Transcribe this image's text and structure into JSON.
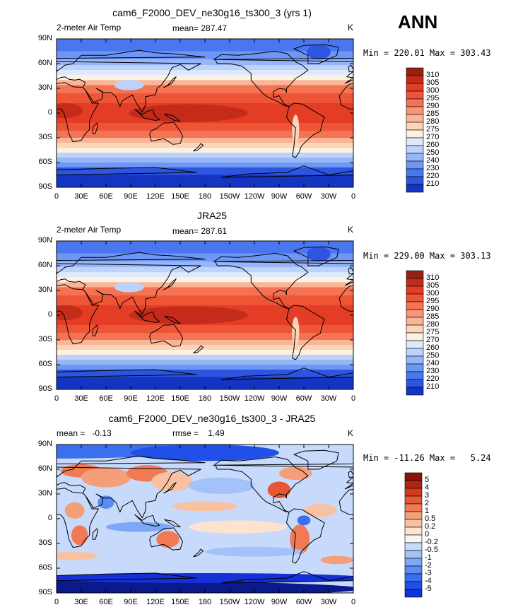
{
  "season": "ANN",
  "colors": {
    "abs_palette": [
      "#0a1a78",
      "#1434c2",
      "#2d55e0",
      "#4a76f0",
      "#6e96f5",
      "#97b6f7",
      "#bdd3fa",
      "#dde9fc",
      "#fdf1e2",
      "#fcd4b8",
      "#fab597",
      "#f79574",
      "#f47352",
      "#ee5537",
      "#e33d25",
      "#c42b19",
      "#962012"
    ],
    "diff_palette": [
      "#0a1a8a",
      "#1530d6",
      "#2150e8",
      "#3a6ff0",
      "#5a8cf2",
      "#7ea8f5",
      "#a3c2f8",
      "#c7dafb",
      "#f5f5f5",
      "#fbe3cf",
      "#f8c2a2",
      "#f59e7a",
      "#f17a55",
      "#e85735",
      "#d33a1f",
      "#b02414",
      "#8a130b"
    ],
    "land": "#000000"
  },
  "chart_data": [
    {
      "type": "contour-map",
      "title": "cam6_F2000_DEV_ne30g16_ts300_3 (yrs 1)",
      "left_label": "2-meter Air Temp",
      "center_label": "mean= 287.47",
      "right_label": "K",
      "minmax_text": "Min = 220.01 Max = 303.43",
      "stats": {
        "mean": 287.47,
        "min": 220.01,
        "max": 303.43
      },
      "units": "K",
      "levels": [
        "310",
        "305",
        "300",
        "295",
        "290",
        "285",
        "280",
        "275",
        "270",
        "260",
        "250",
        "240",
        "230",
        "220",
        "210"
      ],
      "yticks": [
        "90N",
        "60N",
        "30N",
        "0",
        "30S",
        "60S",
        "90S"
      ],
      "xticks": [
        "0",
        "30E",
        "60E",
        "90E",
        "120E",
        "150E",
        "180",
        "150W",
        "120W",
        "90W",
        "60W",
        "30W",
        "0"
      ],
      "lat_range": [
        -90,
        90
      ],
      "lon_range": [
        0,
        360
      ],
      "pattern": "model"
    },
    {
      "type": "contour-map",
      "title": "JRA25",
      "left_label": "2-meter Air Temp",
      "center_label": "mean= 287.61",
      "right_label": "K",
      "minmax_text": "Min = 229.00 Max = 303.13",
      "stats": {
        "mean": 287.61,
        "min": 229.0,
        "max": 303.13
      },
      "units": "K",
      "levels": [
        "310",
        "305",
        "300",
        "295",
        "290",
        "285",
        "280",
        "275",
        "270",
        "260",
        "250",
        "240",
        "230",
        "220",
        "210"
      ],
      "yticks": [
        "90N",
        "60N",
        "30N",
        "0",
        "30S",
        "60S",
        "90S"
      ],
      "xticks": [
        "0",
        "30E",
        "60E",
        "90E",
        "120E",
        "150E",
        "180",
        "150W",
        "120W",
        "90W",
        "60W",
        "30W",
        "0"
      ],
      "lat_range": [
        -90,
        90
      ],
      "lon_range": [
        0,
        360
      ],
      "pattern": "obs"
    },
    {
      "type": "contour-map",
      "title": "cam6_F2000_DEV_ne30g16_ts300_3 - JRA25",
      "left_label": "mean =   -0.13",
      "center_label": "rmse =    1.49",
      "right_label": "K",
      "minmax_text": "Min = -11.26 Max =   5.24",
      "stats": {
        "mean": -0.13,
        "rmse": 1.49,
        "min": -11.26,
        "max": 5.24
      },
      "units": "K",
      "levels": [
        "5",
        "4",
        "3",
        "2",
        "1",
        "0.5",
        "0.2",
        "0",
        "-0.2",
        "-0.5",
        "-1",
        "-2",
        "-3",
        "-4",
        "-5"
      ],
      "yticks": [
        "90N",
        "60N",
        "30N",
        "0",
        "30S",
        "60S",
        "90S"
      ],
      "xticks": [
        "0",
        "30E",
        "60E",
        "90E",
        "120E",
        "150E",
        "180",
        "150W",
        "120W",
        "90W",
        "60W",
        "30W",
        "0"
      ],
      "lat_range": [
        -90,
        90
      ],
      "lon_range": [
        0,
        360
      ],
      "pattern": "diff"
    }
  ]
}
